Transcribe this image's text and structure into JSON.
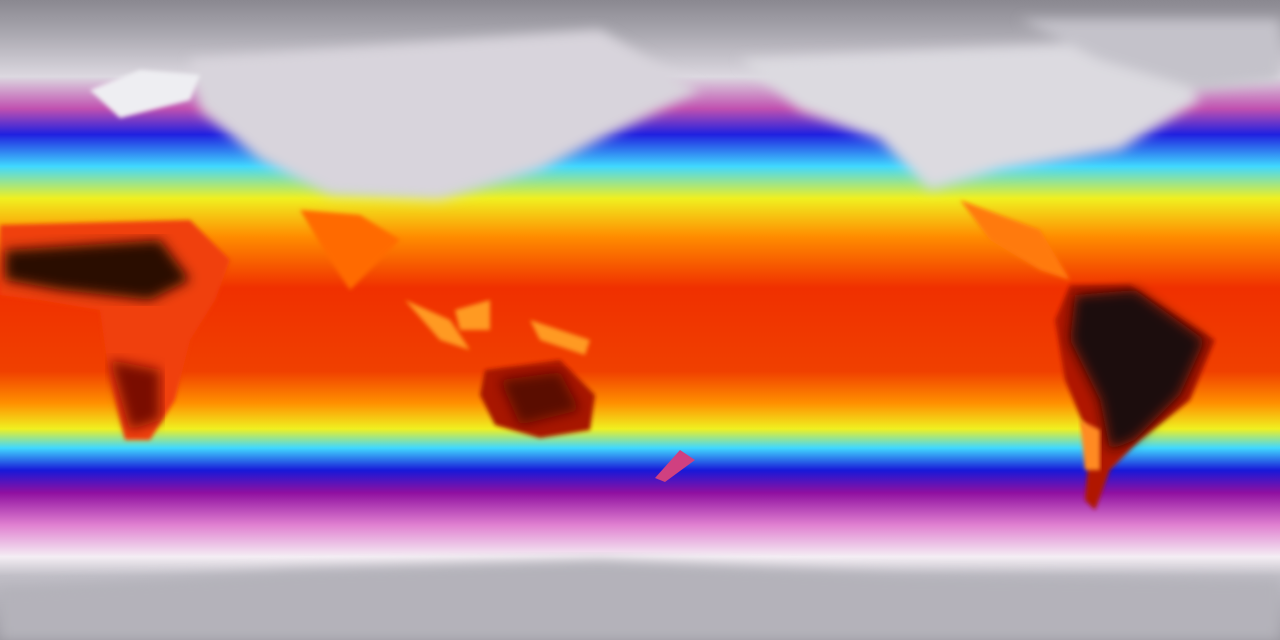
{
  "map": {
    "projection": "equirectangular",
    "variable": "temperature",
    "colorscale": [
      "#8a8890",
      "#d8d4dc",
      "#b020a0",
      "#2020e0",
      "#40d8ff",
      "#f0f020",
      "#ff8c00",
      "#f03000",
      "#1a0a08"
    ],
    "regions": [
      "greenland",
      "north-africa-hot",
      "africa",
      "australia",
      "south-america-hot",
      "antarctica",
      "india",
      "indonesia"
    ]
  }
}
